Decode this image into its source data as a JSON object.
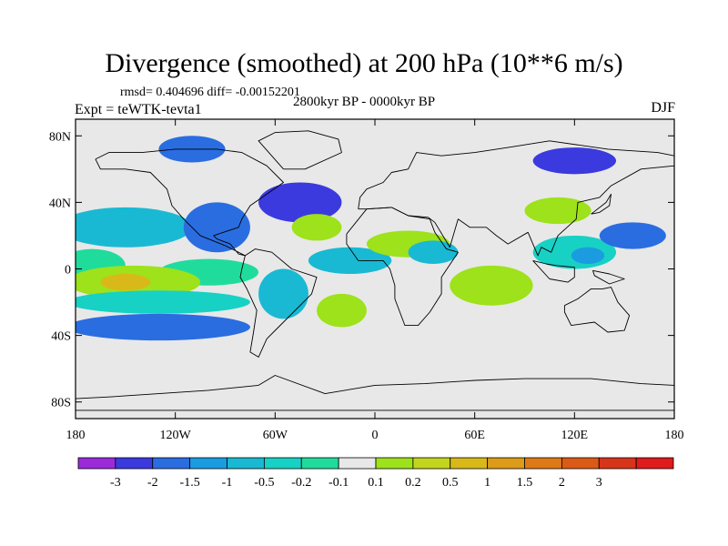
{
  "figure": {
    "title": "Divergence (smoothed) at 200 hPa (10**6 m/s)",
    "stats": "rmsd= 0.404696 diff= -0.00152201",
    "period": "2800kyr BP - 0000kyr BP",
    "experiment": "Expt = teWTK-tevta1",
    "season": "DJF"
  },
  "map": {
    "projection": "cylindrical equidistant",
    "lon_range": [
      -180,
      180
    ],
    "lat_range": [
      -90,
      90
    ],
    "lon_ticks": [
      {
        "value": -180,
        "label": "180"
      },
      {
        "value": -120,
        "label": "120W"
      },
      {
        "value": -60,
        "label": "60W"
      },
      {
        "value": 0,
        "label": "0"
      },
      {
        "value": 60,
        "label": "60E"
      },
      {
        "value": 120,
        "label": "120E"
      },
      {
        "value": 180,
        "label": "180"
      }
    ],
    "lat_ticks": [
      {
        "value": 80,
        "label": "80N"
      },
      {
        "value": 40,
        "label": "40N"
      },
      {
        "value": 0,
        "label": "0"
      },
      {
        "value": -40,
        "label": "40S"
      },
      {
        "value": -80,
        "label": "80S"
      }
    ],
    "background_color": "#e8e8e8",
    "features": [
      {
        "name": "north-pacific-warm-band",
        "lon": -150,
        "lat": 25,
        "rlon": 40,
        "rlat": 12,
        "level": 4
      },
      {
        "name": "central-pacific-green",
        "lon": -95,
        "lat": 25,
        "rlon": 20,
        "rlat": 15,
        "level": 2
      },
      {
        "name": "equatorial-pacific-west",
        "lon": -170,
        "lat": 2,
        "rlon": 20,
        "rlat": 10,
        "level": 6
      },
      {
        "name": "equatorial-pacific-east",
        "lon": -100,
        "lat": -2,
        "rlon": 30,
        "rlat": 8,
        "level": 6
      },
      {
        "name": "south-pacific-cyan-band",
        "lon": -145,
        "lat": -8,
        "rlon": 40,
        "rlat": 10,
        "level": 8
      },
      {
        "name": "south-pacific-blue-core",
        "lon": -150,
        "lat": -8,
        "rlon": 15,
        "rlat": 5,
        "level": 10
      },
      {
        "name": "south-pacific-orange-band",
        "lon": -130,
        "lat": -20,
        "rlon": 55,
        "rlat": 7,
        "level": 5
      },
      {
        "name": "south-pacific-green-band",
        "lon": -130,
        "lat": -35,
        "rlon": 55,
        "rlat": 8,
        "level": 2
      },
      {
        "name": "north-atlantic-green",
        "lon": -45,
        "lat": 40,
        "rlon": 25,
        "rlat": 12,
        "level": 1
      },
      {
        "name": "north-atlantic-cyan",
        "lon": -35,
        "lat": 25,
        "rlon": 15,
        "rlat": 8,
        "level": 8
      },
      {
        "name": "atlantic-equator-orange",
        "lon": -15,
        "lat": 5,
        "rlon": 25,
        "rlat": 8,
        "level": 4
      },
      {
        "name": "south-america-orange",
        "lon": -55,
        "lat": -15,
        "rlon": 15,
        "rlat": 15,
        "level": 4
      },
      {
        "name": "south-atlantic-cyan",
        "lon": -20,
        "lat": -25,
        "rlon": 15,
        "rlat": 10,
        "level": 8
      },
      {
        "name": "africa-cyan-band",
        "lon": 20,
        "lat": 15,
        "rlon": 25,
        "rlat": 8,
        "level": 8
      },
      {
        "name": "indian-ocean-cyan",
        "lon": 70,
        "lat": -10,
        "rlon": 25,
        "rlat": 12,
        "level": 8
      },
      {
        "name": "arabia-orange",
        "lon": 35,
        "lat": 10,
        "rlon": 15,
        "rlat": 7,
        "level": 4
      },
      {
        "name": "maritime-continent-orange",
        "lon": 120,
        "lat": 10,
        "rlon": 25,
        "rlat": 10,
        "level": 5
      },
      {
        "name": "maritime-continent-red-core",
        "lon": 128,
        "lat": 8,
        "rlon": 10,
        "rlat": 5,
        "level": 3
      },
      {
        "name": "west-pacific-green",
        "lon": 155,
        "lat": 20,
        "rlon": 20,
        "rlat": 8,
        "level": 2
      },
      {
        "name": "china-cyan",
        "lon": 110,
        "lat": 35,
        "rlon": 20,
        "rlat": 8,
        "level": 8
      },
      {
        "name": "siberia-green",
        "lon": 120,
        "lat": 65,
        "rlon": 25,
        "rlat": 8,
        "level": 1
      },
      {
        "name": "arctic-canada-green",
        "lon": -110,
        "lat": 72,
        "rlon": 20,
        "rlat": 8,
        "level": 2
      }
    ]
  },
  "colorbar": {
    "colors": [
      "#9b2ad8",
      "#3b3ade",
      "#2a6de0",
      "#1b9ce0",
      "#19b9d3",
      "#17d1c4",
      "#20dc9c",
      "#e8e8e8",
      "#9de21a",
      "#c3d51c",
      "#d9b81a",
      "#dc9b18",
      "#dd7a17",
      "#db5a16",
      "#d8341a",
      "#e01b1b"
    ],
    "labels": [
      "-3",
      "-2",
      "-1.5",
      "-1",
      "-0.5",
      "-0.2",
      "-0.1",
      "0.1",
      "0.2",
      "0.5",
      "1",
      "1.5",
      "2",
      "3"
    ]
  }
}
